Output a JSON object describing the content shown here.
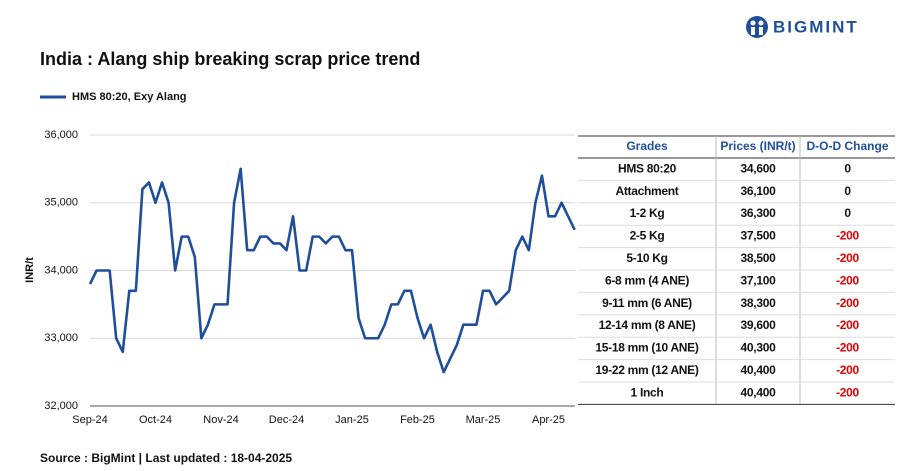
{
  "logo": "BIGMINT",
  "source": "Source : BigMint | Last updated : 18-04-2025",
  "chart_data": {
    "type": "line",
    "title": "India : Alang ship breaking scrap price trend",
    "y_label": "INR/t",
    "categories": [
      "Sep-24",
      null,
      null,
      null,
      null,
      null,
      null,
      null,
      null,
      null,
      "Oct-24",
      null,
      null,
      null,
      null,
      null,
      null,
      null,
      null,
      null,
      "Nov-24",
      null,
      null,
      null,
      null,
      null,
      null,
      null,
      null,
      null,
      "Dec-24",
      null,
      null,
      null,
      null,
      null,
      null,
      null,
      null,
      null,
      "Jan-25",
      null,
      null,
      null,
      null,
      null,
      null,
      null,
      null,
      null,
      "Feb-25",
      null,
      null,
      null,
      null,
      null,
      null,
      null,
      null,
      null,
      "Mar-25",
      null,
      null,
      null,
      null,
      null,
      null,
      null,
      null,
      null,
      "Apr-25",
      null,
      null,
      null,
      null
    ],
    "series": [
      {
        "name": "HMS 80:20, Exy Alang",
        "color": "#1f4e9a",
        "values": [
          33800,
          34000,
          34000,
          34000,
          33000,
          32800,
          33700,
          33700,
          35200,
          35300,
          35000,
          35300,
          35000,
          34000,
          34500,
          34500,
          34200,
          33000,
          33200,
          33500,
          33500,
          33500,
          35000,
          35500,
          34300,
          34300,
          34500,
          34500,
          34400,
          34400,
          34300,
          34800,
          34000,
          34000,
          34500,
          34500,
          34400,
          34500,
          34500,
          34300,
          34300,
          33300,
          33000,
          33000,
          33000,
          33200,
          33500,
          33500,
          33700,
          33700,
          33300,
          33000,
          33200,
          32800,
          32500,
          32700,
          32900,
          33200,
          33200,
          33200,
          33700,
          33700,
          33500,
          33600,
          33700,
          34300,
          34500,
          34300,
          35000,
          35400,
          34800,
          34800,
          35000,
          34800,
          34600
        ]
      }
    ],
    "ylim": [
      32000,
      36000
    ],
    "yticks": [
      {
        "value": 32000,
        "label": "32,000"
      },
      {
        "value": 33000,
        "label": "33,000"
      },
      {
        "value": 34000,
        "label": "34,000"
      },
      {
        "value": 35000,
        "label": "35,000"
      },
      {
        "value": 36000,
        "label": "36,000"
      }
    ],
    "grid": true
  },
  "table": {
    "columns": [
      "Grades",
      "Prices (INR/t)",
      "D-O-D Change"
    ],
    "rows": [
      [
        "HMS 80:20",
        "34,600",
        "0"
      ],
      [
        "Attachment",
        "36,100",
        "0"
      ],
      [
        "1-2 Kg",
        "36,300",
        "0"
      ],
      [
        "2-5 Kg",
        "37,500",
        "-200"
      ],
      [
        "5-10 Kg",
        "38,500",
        "-200"
      ],
      [
        "6-8 mm (4 ANE)",
        "37,100",
        "-200"
      ],
      [
        "9-11 mm (6 ANE)",
        "38,300",
        "-200"
      ],
      [
        "12-14 mm (8 ANE)",
        "39,600",
        "-200"
      ],
      [
        "15-18 mm (10 ANE)",
        "40,300",
        "-200"
      ],
      [
        "19-22 mm (12 ANE)",
        "40,400",
        "-200"
      ],
      [
        "1 Inch",
        "40,400",
        "-200"
      ]
    ]
  }
}
